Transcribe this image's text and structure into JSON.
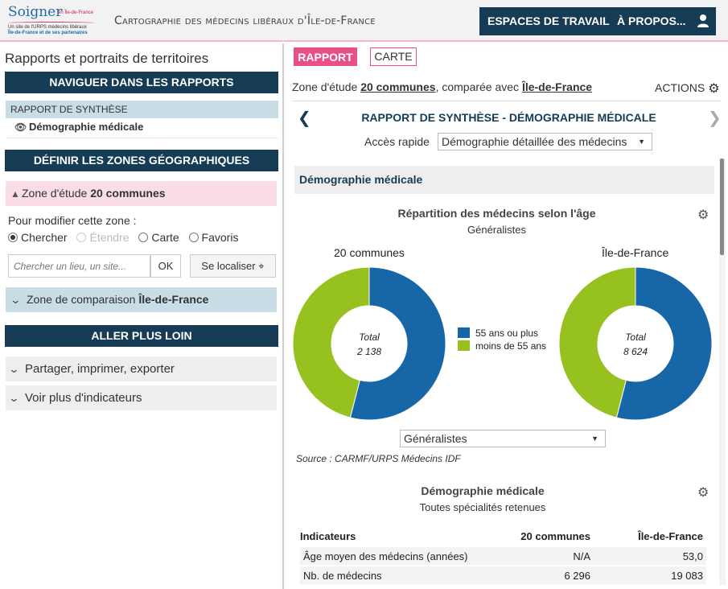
{
  "header": {
    "logo_main": "Soigner",
    "logo_suffix": "en Île-de-France",
    "logo_line1": "Un site de l'URPS médecins libéraux",
    "logo_line2": "Île-de-France et de ses partenaires",
    "app_title": "Cartographie des médecins libéraux d'Île-de-France",
    "nav_workspaces": "ESPACES DE TRAVAIL",
    "nav_about": "À PROPOS...",
    "user_icon": "user-icon"
  },
  "left": {
    "title": "Rapports et portraits de territoires",
    "nav_bar": "NAVIGUER DANS LES RAPPORTS",
    "report_section": "RAPPORT DE SYNTHÈSE",
    "report_item": "Démographie médicale",
    "zones_bar": "DÉFINIR LES ZONES GÉOGRAPHIQUES",
    "study_zone_label": "Zone d'étude",
    "study_zone_value": "20 communes",
    "modify_label": "Pour modifier cette zone :",
    "radios": [
      "Chercher",
      "Étendre",
      "Carte",
      "Favoris"
    ],
    "search_placeholder": "Chercher un lieu, un site...",
    "ok_label": "OK",
    "locate_label": "Se localiser",
    "comp_zone_label": "Zone de comparaison",
    "comp_zone_value": "Île-de-France",
    "more_bar": "ALLER PLUS LOIN",
    "share_label": "Partager, imprimer, exporter",
    "indicators_label": "Voir plus d'indicateurs"
  },
  "right": {
    "tab_report": "RAPPORT",
    "tab_map": "CARTE",
    "zone_prefix": "Zone d'étude",
    "zone_name": "20 communes",
    "zone_mid": ", comparée avec",
    "zone_comp": "Île-de-France",
    "actions": "ACTIONS",
    "report_title": "RAPPORT DE SYNTHÈSE - DÉMOGRAPHIE MÉDICALE",
    "quick_label": "Accès rapide",
    "quick_value": "Démographie détaillée des médecins",
    "section_head": "Démographie médicale",
    "chart_title": "Répartition des médecins selon l'âge",
    "chart_subtitle": "Généralistes",
    "filter_value": "Généralistes",
    "source": "Source : CARMF/URPS Médecins IDF",
    "table_title": "Démographie médicale",
    "table_subtitle": "Toutes spécialités retenues",
    "table": {
      "headers": [
        "Indicateurs",
        "20 communes",
        "Île-de-France"
      ],
      "rows": [
        [
          "Âge moyen des médecins (années)",
          "N/A",
          "53,0"
        ],
        [
          "Nb. de médecins",
          "6 296",
          "19 083"
        ]
      ]
    }
  },
  "chart_data": {
    "type": "pie",
    "title": "Répartition des médecins selon l'âge",
    "subtitle": "Généralistes",
    "legend": [
      "55 ans ou plus",
      "moins de 55 ans"
    ],
    "colors": [
      "#1766a7",
      "#97c11f"
    ],
    "charts": [
      {
        "name": "20 communes",
        "total_label": "Total",
        "total": "2 138",
        "values": [
          54,
          46
        ]
      },
      {
        "name": "Île-de-France",
        "total_label": "Total",
        "total": "8 624",
        "values": [
          54,
          46
        ]
      }
    ]
  }
}
